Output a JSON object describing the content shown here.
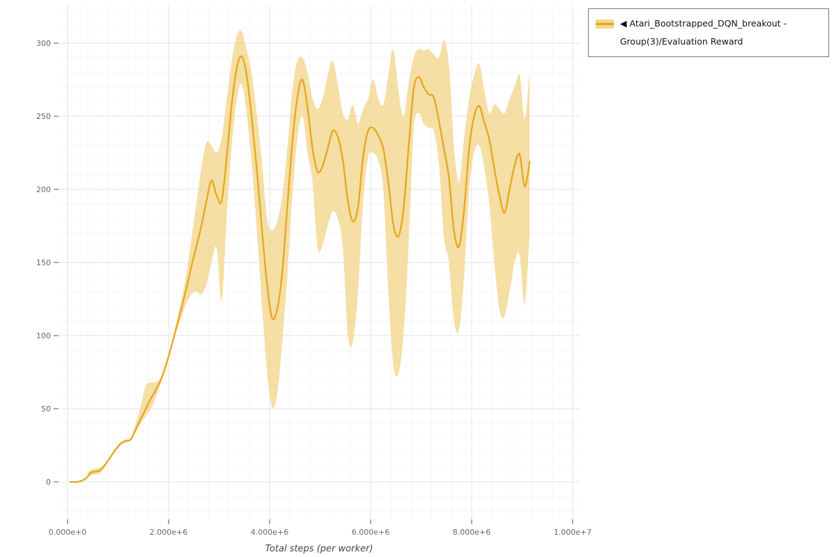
{
  "legend": {
    "collapse_icon": "◀",
    "label": "Atari_Bootstrapped_DQN_breakout - Group(3)/Evaluation Reward"
  },
  "chart_data": {
    "type": "line",
    "title": "",
    "xlabel": "Total steps (per worker)",
    "ylabel": "",
    "legend_position": "top-right",
    "grid": true,
    "x_scale": 1000000,
    "xlim_e6": [
      -0.18,
      10.14
    ],
    "ylim": [
      -26,
      326
    ],
    "x_ticks": {
      "values_e6": [
        0,
        2,
        4,
        6,
        8,
        10
      ],
      "labels": [
        "0.000e+0",
        "2.000e+6",
        "4.000e+6",
        "6.000e+6",
        "8.000e+6",
        "1.000e+7"
      ]
    },
    "y_ticks": [
      0,
      50,
      100,
      150,
      200,
      250,
      300
    ],
    "colors": {
      "line": "#e6a71c",
      "band": "#f3d78e",
      "band_opacity": 0.8,
      "grid_minor": "#f4f4f4",
      "grid_major": "#e3e3e3",
      "tick_mark": "#555555",
      "tick_text": "#666666"
    },
    "series": [
      {
        "name": "Atari_Bootstrapped_DQN_breakout - Group(3)/Evaluation Reward",
        "x_e6": [
          0.05,
          0.2,
          0.35,
          0.45,
          0.55,
          0.65,
          0.75,
          0.85,
          0.95,
          1.05,
          1.15,
          1.25,
          1.35,
          1.45,
          1.55,
          1.65,
          1.75,
          1.85,
          1.95,
          2.05,
          2.15,
          2.25,
          2.35,
          2.45,
          2.55,
          2.65,
          2.75,
          2.85,
          2.95,
          3.05,
          3.15,
          3.25,
          3.35,
          3.45,
          3.55,
          3.65,
          3.75,
          3.85,
          3.95,
          4.05,
          4.15,
          4.25,
          4.35,
          4.45,
          4.55,
          4.65,
          4.75,
          4.85,
          4.95,
          5.05,
          5.15,
          5.25,
          5.35,
          5.45,
          5.55,
          5.65,
          5.75,
          5.85,
          5.95,
          6.05,
          6.15,
          6.25,
          6.35,
          6.45,
          6.55,
          6.65,
          6.75,
          6.85,
          6.95,
          7.05,
          7.15,
          7.25,
          7.35,
          7.45,
          7.55,
          7.65,
          7.75,
          7.85,
          7.95,
          8.05,
          8.15,
          8.25,
          8.35,
          8.45,
          8.55,
          8.65,
          8.75,
          8.85,
          8.95,
          9.05,
          9.15
        ],
        "mean": [
          0,
          0,
          2,
          6,
          7,
          8,
          12,
          17,
          22,
          26,
          28,
          29,
          36,
          43,
          50,
          57,
          63,
          70,
          80,
          92,
          105,
          118,
          132,
          147,
          161,
          175,
          192,
          206,
          196,
          192,
          222,
          258,
          283,
          291,
          277,
          248,
          212,
          172,
          135,
          112,
          118,
          143,
          188,
          232,
          263,
          275,
          256,
          228,
          212,
          216,
          228,
          240,
          236,
          220,
          192,
          178,
          188,
          222,
          240,
          242,
          237,
          228,
          205,
          176,
          168,
          186,
          228,
          268,
          277,
          270,
          265,
          263,
          247,
          228,
          208,
          172,
          161,
          186,
          228,
          250,
          257,
          246,
          234,
          214,
          196,
          184,
          200,
          216,
          224,
          202,
          219
        ],
        "lower": [
          0,
          0,
          2,
          4,
          5,
          6,
          11,
          16,
          21,
          25,
          27,
          28,
          34,
          40,
          45,
          50,
          58,
          68,
          78,
          90,
          102,
          112,
          122,
          128,
          130,
          128,
          135,
          150,
          160,
          124,
          180,
          230,
          262,
          272,
          250,
          215,
          170,
          120,
          75,
          51,
          60,
          95,
          140,
          195,
          235,
          250,
          225,
          205,
          160,
          162,
          175,
          185,
          180,
          160,
          100,
          96,
          130,
          190,
          222,
          225,
          220,
          200,
          130,
          80,
          74,
          100,
          160,
          240,
          252,
          245,
          242,
          240,
          218,
          168,
          150,
          110,
          104,
          140,
          200,
          225,
          230,
          215,
          190,
          150,
          118,
          113,
          130,
          150,
          155,
          122,
          170
        ],
        "upper": [
          0,
          0,
          2,
          8,
          9,
          10,
          13,
          18,
          23,
          27,
          29,
          30,
          40,
          52,
          66,
          68,
          68,
          72,
          82,
          94,
          108,
          124,
          142,
          166,
          190,
          215,
          232,
          230,
          225,
          235,
          262,
          288,
          305,
          308,
          295,
          278,
          250,
          218,
          180,
          172,
          178,
          195,
          228,
          268,
          288,
          290,
          280,
          262,
          255,
          262,
          278,
          288,
          272,
          252,
          248,
          258,
          245,
          255,
          262,
          275,
          262,
          258,
          278,
          296,
          268,
          250,
          272,
          290,
          296,
          295,
          296,
          292,
          290,
          302,
          285,
          230,
          205,
          235,
          262,
          278,
          286,
          268,
          252,
          258,
          255,
          252,
          262,
          270,
          278,
          248,
          282
        ]
      }
    ]
  }
}
